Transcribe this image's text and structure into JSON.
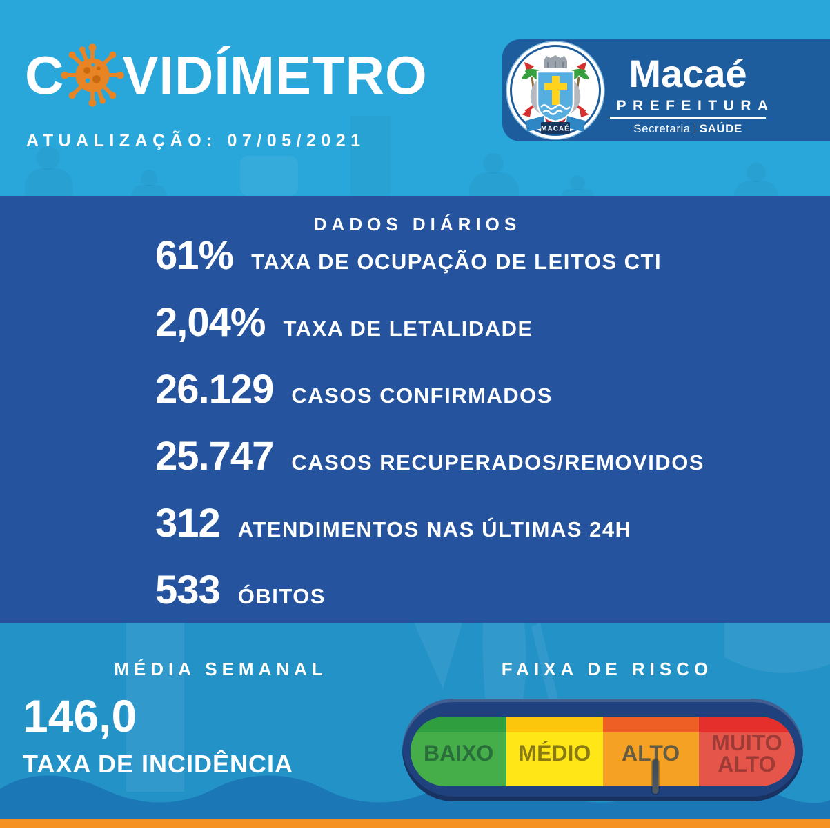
{
  "header": {
    "title_prefix": "C",
    "title_suffix": "VIDÍMETRO",
    "update_label": "ATUALIZAÇÃO: 07/05/2021"
  },
  "logo": {
    "city": "Macaé",
    "org": "PREFEITURA",
    "department": "Secretaria",
    "department_division": "SAÚDE",
    "crest_banner_text": "MACAÉ"
  },
  "daily": {
    "heading": "DADOS DIÁRIOS",
    "stats": [
      {
        "value": "61%",
        "label": "TAXA DE OCUPAÇÃO DE LEITOS CTI"
      },
      {
        "value": "2,04%",
        "label": "TAXA DE LETALIDADE"
      },
      {
        "value": "26.129",
        "label": "CASOS CONFIRMADOS"
      },
      {
        "value": "25.747",
        "label": "CASOS RECUPERADOS/REMOVIDOS"
      },
      {
        "value": "312",
        "label": "ATENDIMENTOS NAS ÚLTIMAS 24H"
      },
      {
        "value": "533",
        "label": "ÓBITOS"
      }
    ]
  },
  "weekly": {
    "heading": "MÉDIA SEMANAL",
    "value": "146,0",
    "label": "TAXA DE INCIDÊNCIA"
  },
  "risk": {
    "heading": "FAIXA DE RISCO",
    "current_level": "ALTO",
    "marker_position_pct": 63.2,
    "levels": [
      {
        "label": "BAIXO",
        "color": "#45ae49",
        "top_color": "#2f9e3e",
        "text_color": "#2a6e3c"
      },
      {
        "label": "MÉDIO",
        "color": "#ffe617",
        "top_color": "#fcc60d",
        "text_color": "#897a12"
      },
      {
        "label": "ALTO",
        "color": "#f5a123",
        "top_color": "#ee5f26",
        "text_color": "#655c42"
      },
      {
        "label": "MUITO ALTO",
        "color": "#e6554a",
        "top_color": "#e52f2d",
        "text_color": "#9e3b36"
      }
    ]
  },
  "colors": {
    "header_bg": "#2aa7da",
    "banner_bg": "#1d5d9e",
    "mid_bg": "#25539d",
    "bottom_bg": "#2292c7",
    "wave": "#1b77b5",
    "footer_bar": "#f59120",
    "virus": "#e98425",
    "gauge_frame": "#1f417d",
    "marker": "#4d5a63"
  }
}
